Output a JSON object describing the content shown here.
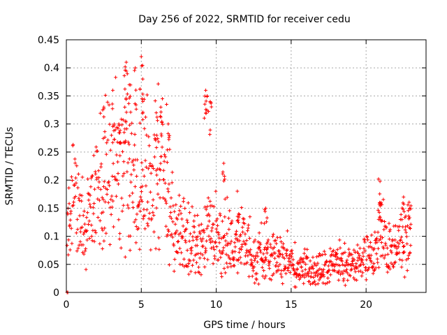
{
  "chart_data": {
    "type": "scatter",
    "title": "Day 256 of 2022, SRMTID for receiver cedu",
    "xlabel": "GPS time / hours",
    "ylabel": "SRMTID / TECUs",
    "xlim": [
      0,
      24
    ],
    "ylim": [
      0,
      0.45
    ],
    "grid": true,
    "marker": "+",
    "series_color": "#ff0000",
    "x_ticks": [
      0,
      5,
      10,
      15,
      20
    ],
    "x_tick_labels": [
      "0",
      "5",
      "10",
      "15",
      "20"
    ],
    "y_ticks": [
      0,
      0.05,
      0.1,
      0.15,
      0.2,
      0.25,
      0.3,
      0.35,
      0.4,
      0.45
    ],
    "y_tick_labels": [
      "0",
      "0.05",
      "0.1",
      "0.15",
      "0.2",
      "0.25",
      "0.3",
      "0.35",
      "0.4",
      "0.45"
    ],
    "trend": [
      [
        0.1,
        0.11
      ],
      [
        0.4,
        0.17
      ],
      [
        0.8,
        0.15
      ],
      [
        1.2,
        0.1
      ],
      [
        1.6,
        0.14
      ],
      [
        2.0,
        0.17
      ],
      [
        2.4,
        0.16
      ],
      [
        2.8,
        0.2
      ],
      [
        3.2,
        0.22
      ],
      [
        3.6,
        0.21
      ],
      [
        4.0,
        0.25
      ],
      [
        4.4,
        0.22
      ],
      [
        4.8,
        0.14
      ],
      [
        5.2,
        0.2
      ],
      [
        5.6,
        0.19
      ],
      [
        6.0,
        0.2
      ],
      [
        6.4,
        0.2
      ],
      [
        6.8,
        0.16
      ],
      [
        7.2,
        0.11
      ],
      [
        7.6,
        0.1
      ],
      [
        8.0,
        0.09
      ],
      [
        8.4,
        0.08
      ],
      [
        8.8,
        0.09
      ],
      [
        9.2,
        0.08
      ],
      [
        9.6,
        0.12
      ],
      [
        10.0,
        0.09
      ],
      [
        10.4,
        0.08
      ],
      [
        10.8,
        0.09
      ],
      [
        11.2,
        0.08
      ],
      [
        11.6,
        0.1
      ],
      [
        12.0,
        0.08
      ],
      [
        12.5,
        0.06
      ],
      [
        13.0,
        0.07
      ],
      [
        13.5,
        0.06
      ],
      [
        14.0,
        0.06
      ],
      [
        14.5,
        0.06
      ],
      [
        15.0,
        0.05
      ],
      [
        15.5,
        0.04
      ],
      [
        16.0,
        0.04
      ],
      [
        16.5,
        0.04
      ],
      [
        17.0,
        0.04
      ],
      [
        17.5,
        0.04
      ],
      [
        18.0,
        0.05
      ],
      [
        18.5,
        0.05
      ],
      [
        19.0,
        0.05
      ],
      [
        19.5,
        0.05
      ],
      [
        20.0,
        0.05
      ],
      [
        20.5,
        0.07
      ],
      [
        20.9,
        0.11
      ],
      [
        21.2,
        0.1
      ],
      [
        21.6,
        0.07
      ],
      [
        22.0,
        0.07
      ],
      [
        22.4,
        0.09
      ],
      [
        22.9,
        0.1
      ]
    ],
    "spikes": [
      [
        2.5,
        0.33
      ],
      [
        3.1,
        0.36
      ],
      [
        3.5,
        0.3
      ],
      [
        3.9,
        0.33
      ],
      [
        4.0,
        0.41
      ],
      [
        4.2,
        0.37
      ],
      [
        4.6,
        0.4
      ],
      [
        5.0,
        0.42
      ],
      [
        5.1,
        0.38
      ],
      [
        6.0,
        0.32
      ],
      [
        6.3,
        0.33
      ],
      [
        6.8,
        0.3
      ],
      [
        9.3,
        0.36
      ],
      [
        9.4,
        0.35
      ],
      [
        9.6,
        0.34
      ],
      [
        10.5,
        0.23
      ],
      [
        11.5,
        0.14
      ],
      [
        13.3,
        0.15
      ],
      [
        20.9,
        0.16
      ],
      [
        21.0,
        0.16
      ],
      [
        22.5,
        0.17
      ],
      [
        22.9,
        0.15
      ]
    ],
    "zero_points": [
      [
        0.05,
        0.0
      ],
      [
        0.1,
        0.0
      ]
    ]
  }
}
